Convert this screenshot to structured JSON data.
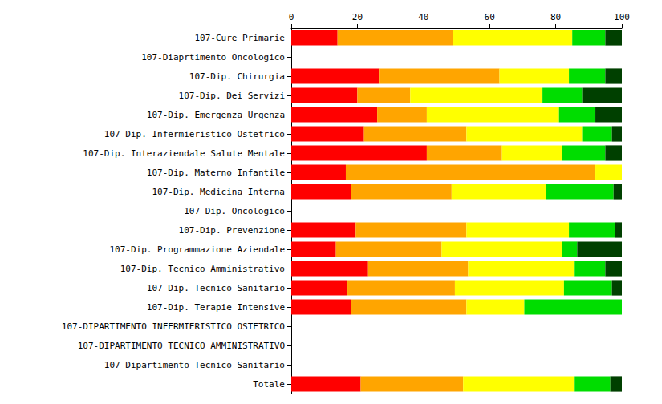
{
  "chart_data": {
    "type": "bar",
    "orientation": "horizontal",
    "stacked": true,
    "grid": false,
    "categories": [
      "107-Cure Primarie",
      "107-Diaprtimento Oncologico",
      "107-Dip. Chirurgia",
      "107-Dip. Dei Servizi",
      "107-Dip. Emergenza Urgenza",
      "107-Dip. Infermieristico Ostetrico",
      "107-Dip. Interaziendale Salute Mentale",
      "107-Dip. Materno Infantile",
      "107-Dip. Medicina Interna",
      "107-Dip. Oncologico",
      "107-Dip. Prevenzione",
      "107-Dip. Programmazione Aziendale",
      "107-Dip. Tecnico Amministrativo",
      "107-Dip. Tecnico Sanitario",
      "107-Dip. Terapie Intensive",
      "107-DIPARTIMENTO INFERMIERISTICO OSTETRICO",
      "107-DIPARTIMENTO TECNICO AMMINISTRATIVO",
      "107-Dipartimento Tecnico Sanitario",
      "Totale"
    ],
    "series": [
      {
        "color": "#ff0000",
        "values": [
          14,
          null,
          26.5,
          20,
          26,
          22,
          41,
          16.5,
          18,
          null,
          19.5,
          13.5,
          23,
          17,
          18,
          null,
          null,
          null,
          21
        ]
      },
      {
        "color": "#ffa500",
        "values": [
          35,
          null,
          36.5,
          16,
          15,
          31,
          22.5,
          75.5,
          30.5,
          null,
          33.5,
          32,
          30.5,
          32.5,
          35,
          null,
          null,
          null,
          31
        ]
      },
      {
        "color": "#ffff00",
        "values": [
          36,
          null,
          21,
          40,
          40,
          35,
          18.5,
          8,
          28.5,
          null,
          31,
          36.5,
          32,
          33,
          17.5,
          null,
          null,
          null,
          33.5
        ]
      },
      {
        "color": "#00dd00",
        "values": [
          10,
          null,
          11,
          12,
          11,
          9,
          13,
          0,
          20.5,
          null,
          14,
          4.5,
          9.5,
          14.5,
          29.5,
          null,
          null,
          null,
          11
        ]
      },
      {
        "color": "#004000",
        "values": [
          5,
          null,
          5,
          12,
          8,
          3,
          5,
          0,
          2.5,
          null,
          2,
          13.5,
          5,
          3,
          0,
          null,
          null,
          null,
          3.5
        ]
      }
    ],
    "xlim": [
      0,
      100
    ],
    "xticks": [
      0,
      20,
      40,
      60,
      80,
      100
    ]
  }
}
